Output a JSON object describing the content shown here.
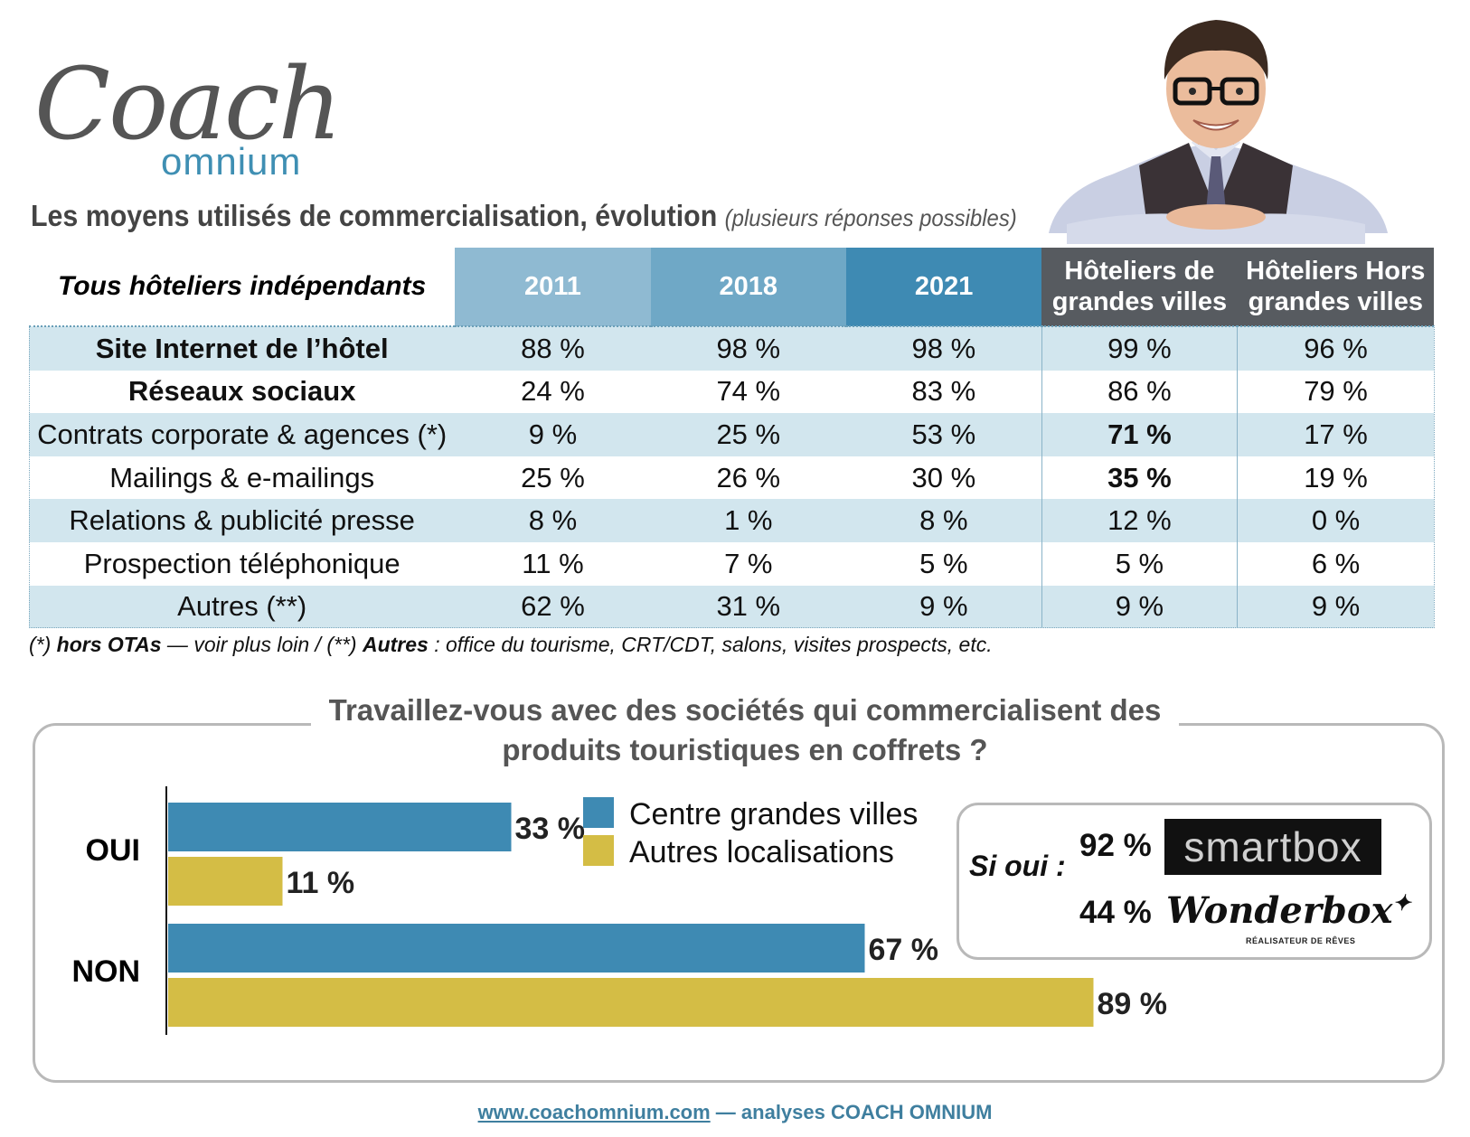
{
  "logo": {
    "word1": "Coach",
    "word2": "omnium"
  },
  "title": {
    "main": "Les moyens utilisés de commercialisation, évolution",
    "sub": "(plusieurs réponses possibles)"
  },
  "table": {
    "corner": "Tous hôteliers indépendants",
    "columns": [
      "2011",
      "2018",
      "2021",
      "Hôteliers de grandes villes",
      "Hôteliers Hors grandes villes"
    ],
    "rows": [
      {
        "label": "Site Internet de l’hôtel",
        "values": [
          "88 %",
          "98 %",
          "98 %",
          "99 %",
          "96 %"
        ]
      },
      {
        "label": "Réseaux sociaux",
        "values": [
          "24 %",
          "74 %",
          "83 %",
          "86 %",
          "79 %"
        ]
      },
      {
        "label": "Contrats corporate & agences (*)",
        "values": [
          "9 %",
          "25 %",
          "53 %",
          "71 %",
          "17 %"
        ]
      },
      {
        "label": "Mailings & e-mailings",
        "values": [
          "25 %",
          "26 %",
          "30 %",
          "35 %",
          "19 %"
        ]
      },
      {
        "label": "Relations & publicité presse",
        "values": [
          "8 %",
          "1 %",
          "8 %",
          "12 %",
          "0 %"
        ]
      },
      {
        "label": "Prospection téléphonique",
        "values": [
          "11 %",
          "7 %",
          "5 %",
          "5 %",
          "6 %"
        ]
      },
      {
        "label": "Autres (**)",
        "values": [
          "62 %",
          "31 %",
          "9 %",
          "9 %",
          "9 %"
        ]
      }
    ]
  },
  "footnote": {
    "p1": "(*) ",
    "b1": "hors OTAs",
    "p2": " — voir plus loin / (**) ",
    "b2": "Autres",
    "p3": " : office du tourisme, CRT/CDT, salons, visites prospects, etc."
  },
  "question": {
    "line1": "Travaillez-vous avec des sociétés qui commercialisent des",
    "line2": "produits touristiques en coffrets ?"
  },
  "chart_data": {
    "type": "bar",
    "orientation": "horizontal",
    "categories": [
      "OUI",
      "NON"
    ],
    "series": [
      {
        "name": "Centre grandes villes",
        "values": [
          33,
          67
        ],
        "labels": [
          "33 %",
          "67 %"
        ],
        "color": "#3e8ab3"
      },
      {
        "name": "Autres localisations",
        "values": [
          11,
          89
        ],
        "labels": [
          "11 %",
          "89 %"
        ],
        "color": "#d4bd45"
      }
    ],
    "xlim": [
      0,
      100
    ],
    "legend": "right"
  },
  "si_oui": {
    "label": "Si oui :",
    "items": [
      {
        "pct": "92 %",
        "brand": "smartbox"
      },
      {
        "pct": "44 %",
        "brand": "Wonderbox",
        "tagline": "RÉALISATEUR DE RÊVES"
      }
    ]
  },
  "footer": {
    "link": "www.coachomnium.com",
    "text": " — analyses COACH OMNIUM"
  }
}
